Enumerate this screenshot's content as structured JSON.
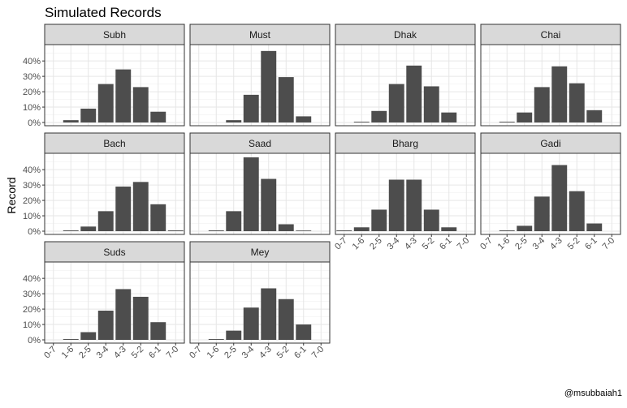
{
  "title": "Simulated Records",
  "caption": "@msubbaiah1",
  "chart_data": {
    "type": "bar",
    "title": "Simulated Records",
    "xlabel": "",
    "ylabel": "Record",
    "categories": [
      "0-7",
      "1-6",
      "2-5",
      "3-4",
      "4-3",
      "5-2",
      "6-1",
      "7-0"
    ],
    "yticks": [
      "0%",
      "10%",
      "20%",
      "30%",
      "40%"
    ],
    "ylim": [
      0,
      48
    ],
    "unit": "%",
    "grid": true,
    "facets": [
      {
        "name": "Subh",
        "values": [
          0,
          1.5,
          9,
          25,
          34.5,
          23,
          7,
          0
        ]
      },
      {
        "name": "Must",
        "values": [
          0,
          0,
          1.5,
          18,
          46.5,
          29.5,
          4,
          0
        ]
      },
      {
        "name": "Dhak",
        "values": [
          0,
          0.5,
          7.5,
          25,
          37,
          23.5,
          6.5,
          0
        ]
      },
      {
        "name": "Chai",
        "values": [
          0,
          0.5,
          6.5,
          23,
          36.5,
          25.5,
          8,
          0
        ]
      },
      {
        "name": "Bach",
        "values": [
          0,
          0.5,
          3,
          13,
          29,
          32,
          17.5,
          0.5
        ]
      },
      {
        "name": "Saad",
        "values": [
          0,
          0.5,
          13,
          48,
          34,
          4.5,
          0.2,
          0
        ]
      },
      {
        "name": "Bharg",
        "values": [
          0.5,
          2.5,
          14,
          33.5,
          33.5,
          14,
          2.5,
          0
        ]
      },
      {
        "name": "Gadi",
        "values": [
          0,
          0.5,
          3.5,
          22.5,
          43,
          26,
          5,
          0
        ]
      },
      {
        "name": "Suds",
        "values": [
          0,
          0.5,
          5,
          19,
          33,
          28,
          11.5,
          0
        ]
      },
      {
        "name": "Mey",
        "values": [
          0,
          0.5,
          6,
          21,
          33.5,
          26.5,
          10,
          0
        ]
      }
    ]
  }
}
